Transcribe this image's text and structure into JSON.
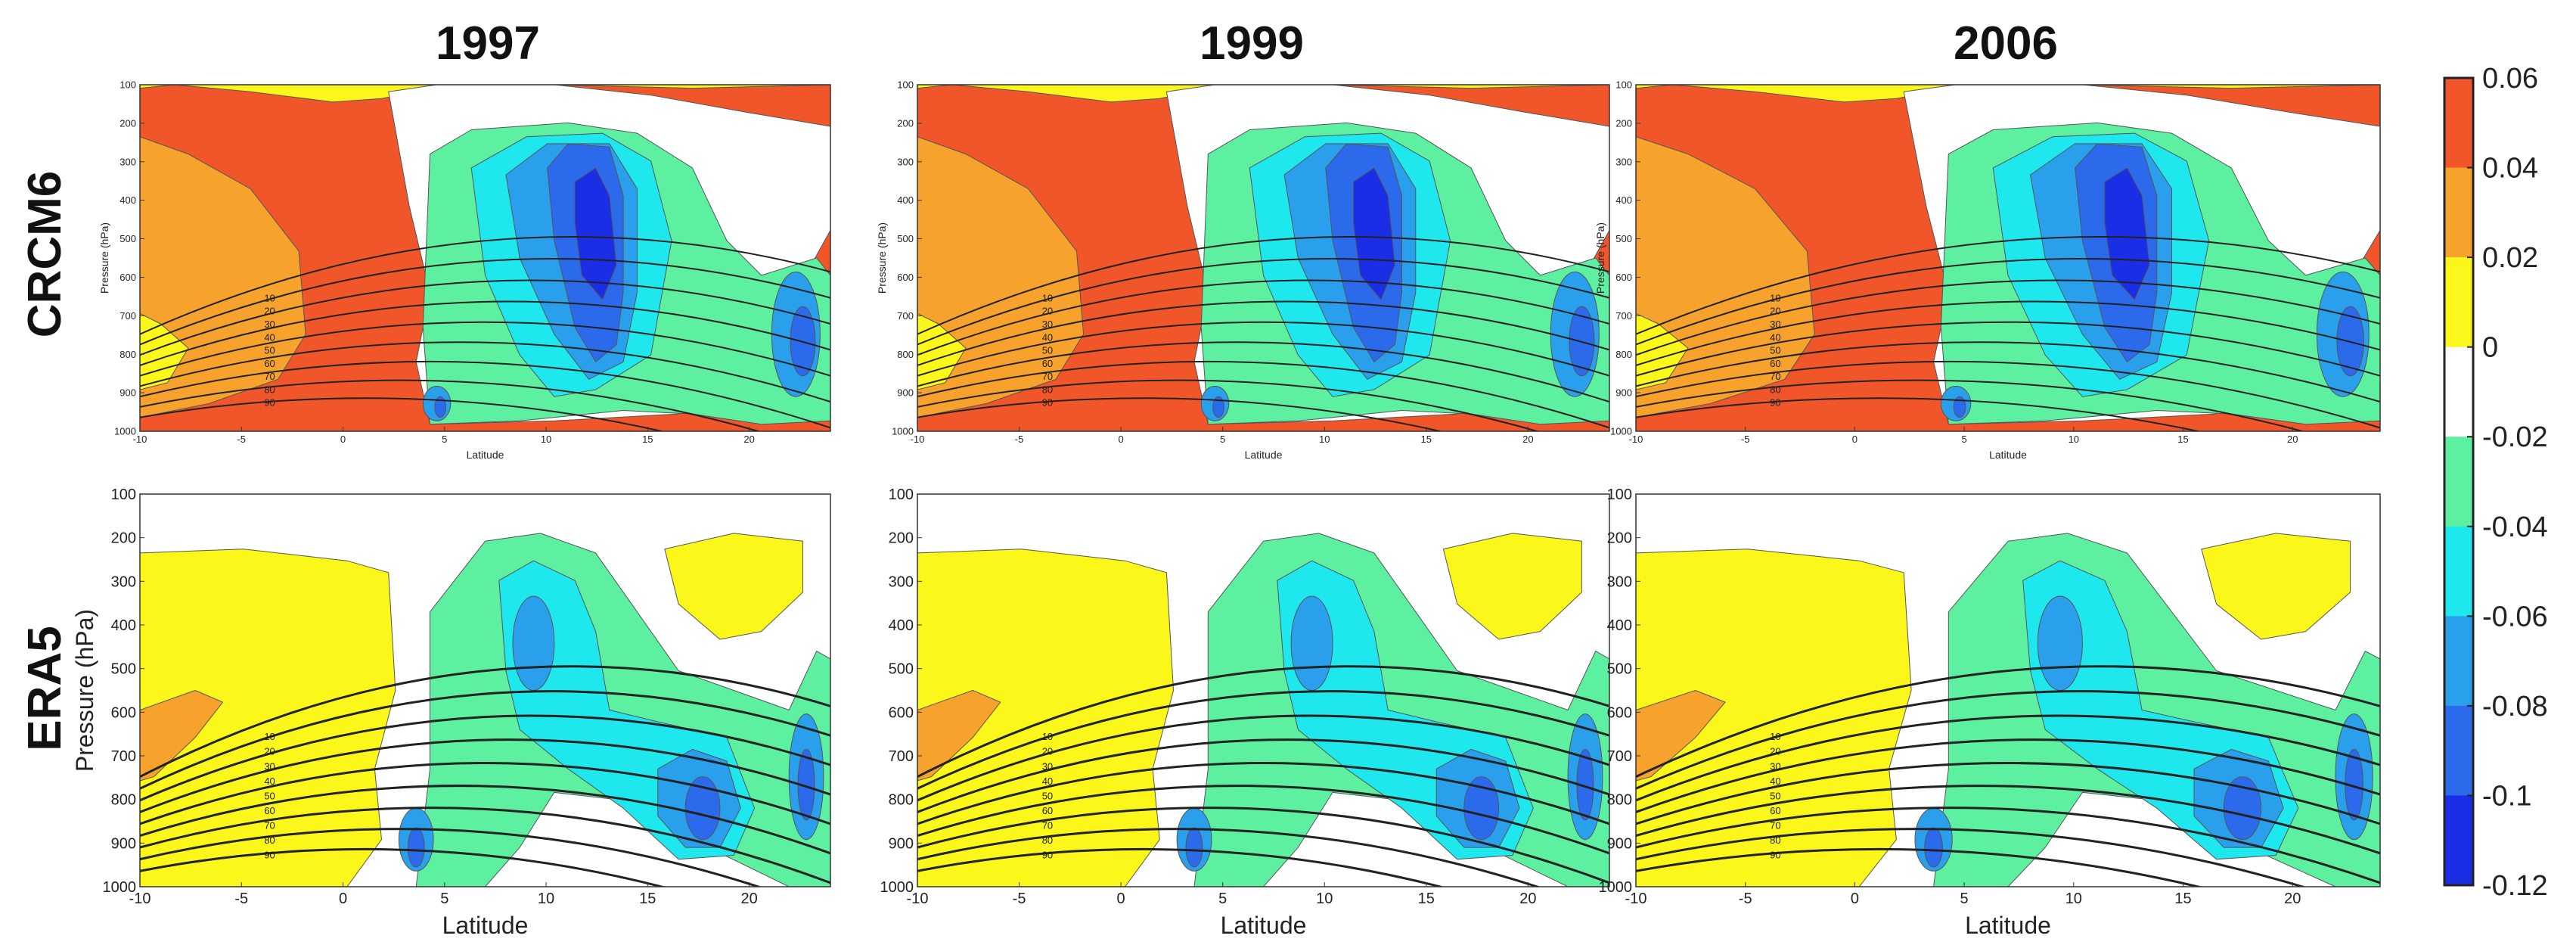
{
  "chart_data": {
    "type": "contour-grid",
    "column_titles": [
      "1997",
      "1999",
      "2006"
    ],
    "row_titles": [
      "CRCM6",
      "ERA5"
    ],
    "xlabel": "Latitude",
    "ylabel": "Pressure (hPa)",
    "xlim": [
      -10,
      24
    ],
    "xticks": [
      -10,
      -5,
      0,
      5,
      10,
      15,
      20
    ],
    "ylim": [
      100,
      1000
    ],
    "yticks": [
      100,
      200,
      300,
      400,
      500,
      600,
      700,
      800,
      900,
      1000
    ],
    "colorbar": {
      "ticks": [
        "0.06",
        "0.04",
        "0.02",
        "0",
        "-0.02",
        "-0.04",
        "-0.06",
        "-0.08",
        "-0.1",
        "-0.12"
      ],
      "levels": [
        0.06,
        0.04,
        0.02,
        0,
        -0.02,
        -0.04,
        -0.06,
        -0.08,
        -0.1,
        -0.12
      ],
      "colors": [
        "#f0562a",
        "#f7a22c",
        "#fbf71a",
        "#ffffff",
        "#5df0a0",
        "#1ee8ee",
        "#2aa0ec",
        "#2c6aec",
        "#1a2ee6"
      ]
    },
    "panels": [
      {
        "row": "CRCM6",
        "year": "1997"
      },
      {
        "row": "CRCM6",
        "year": "1999"
      },
      {
        "row": "CRCM6",
        "year": "2006"
      },
      {
        "row": "ERA5",
        "year": "1997"
      },
      {
        "row": "ERA5",
        "year": "1999"
      },
      {
        "row": "ERA5",
        "year": "2006"
      }
    ],
    "contour_line_labels": [
      "10",
      "20",
      "30",
      "40",
      "50",
      "60",
      "70",
      "80",
      "90"
    ]
  }
}
